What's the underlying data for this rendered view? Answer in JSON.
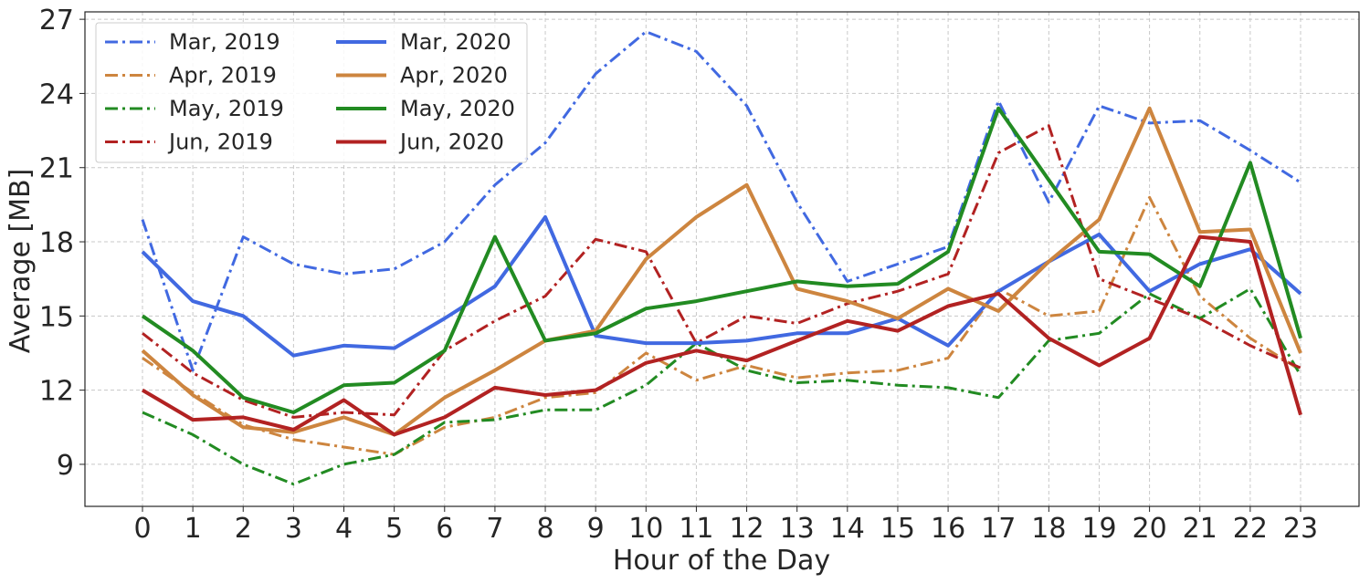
{
  "chart_data": {
    "type": "line",
    "title": "",
    "xlabel": "Hour of the Day",
    "ylabel": "Average [MB]",
    "x": [
      0,
      1,
      2,
      3,
      4,
      5,
      6,
      7,
      8,
      9,
      10,
      11,
      12,
      13,
      14,
      15,
      16,
      17,
      18,
      19,
      20,
      21,
      22,
      23
    ],
    "xticks": [
      "0",
      "1",
      "2",
      "3",
      "4",
      "5",
      "6",
      "7",
      "8",
      "9",
      "10",
      "11",
      "12",
      "13",
      "14",
      "15",
      "16",
      "17",
      "18",
      "19",
      "20",
      "21",
      "22",
      "23"
    ],
    "yticks": [
      "9",
      "12",
      "15",
      "18",
      "21",
      "24",
      "27"
    ],
    "yrange": [
      7.3,
      27.3
    ],
    "grid": true,
    "legend_position": "top-left",
    "series": [
      {
        "name": "Mar, 2019",
        "color": "#4169E1",
        "style": "dashdot",
        "values": [
          18.9,
          12.8,
          18.2,
          17.1,
          16.7,
          16.9,
          18.0,
          20.3,
          22.0,
          24.8,
          26.5,
          25.7,
          23.5,
          19.6,
          16.4,
          17.1,
          17.8,
          23.7,
          19.6,
          23.5,
          22.8,
          22.9,
          21.7,
          20.4
        ]
      },
      {
        "name": "Apr, 2019",
        "color": "#CD853F",
        "style": "dashdot",
        "values": [
          13.3,
          11.9,
          10.6,
          10.0,
          9.7,
          9.4,
          10.5,
          10.9,
          11.7,
          11.9,
          13.5,
          12.4,
          13.0,
          12.5,
          12.7,
          12.8,
          13.3,
          16.1,
          15.0,
          15.2,
          19.8,
          15.8,
          14.1,
          12.8
        ]
      },
      {
        "name": "May, 2019",
        "color": "#228B22",
        "style": "dashdot",
        "values": [
          11.1,
          10.2,
          9.0,
          8.2,
          9.0,
          9.4,
          10.7,
          10.8,
          11.2,
          11.2,
          12.2,
          13.9,
          12.8,
          12.3,
          12.4,
          12.2,
          12.1,
          11.7,
          14.0,
          14.3,
          15.9,
          14.9,
          16.1,
          12.6
        ]
      },
      {
        "name": "Jun, 2019",
        "color": "#B22222",
        "style": "dashdot",
        "values": [
          14.3,
          12.7,
          11.6,
          10.9,
          11.1,
          11.0,
          13.6,
          14.8,
          15.8,
          18.1,
          17.6,
          13.9,
          15.0,
          14.7,
          15.5,
          16.0,
          16.7,
          21.6,
          22.7,
          16.5,
          15.7,
          14.9,
          13.8,
          12.9
        ]
      },
      {
        "name": "Mar, 2020",
        "color": "#4169E1",
        "style": "solid",
        "values": [
          17.6,
          15.6,
          15.0,
          13.4,
          13.8,
          13.7,
          14.9,
          16.2,
          19.0,
          14.2,
          13.9,
          13.9,
          14.0,
          14.3,
          14.3,
          14.9,
          13.8,
          16.0,
          17.2,
          18.3,
          16.0,
          17.1,
          17.7,
          15.9
        ]
      },
      {
        "name": "Apr, 2020",
        "color": "#CD853F",
        "style": "solid",
        "values": [
          13.6,
          11.8,
          10.5,
          10.3,
          10.9,
          10.2,
          11.7,
          12.8,
          14.0,
          14.4,
          17.3,
          19.0,
          20.3,
          16.1,
          15.6,
          14.9,
          16.1,
          15.2,
          17.2,
          18.9,
          23.4,
          18.4,
          18.5,
          13.5
        ]
      },
      {
        "name": "May, 2020",
        "color": "#228B22",
        "style": "solid",
        "values": [
          15.0,
          13.6,
          11.7,
          11.1,
          12.2,
          12.3,
          13.6,
          18.2,
          14.0,
          14.3,
          15.3,
          15.6,
          16.0,
          16.4,
          16.2,
          16.3,
          17.6,
          23.4,
          20.5,
          17.6,
          17.5,
          16.2,
          21.2,
          14.1
        ]
      },
      {
        "name": "Jun, 2020",
        "color": "#B22222",
        "style": "solid",
        "values": [
          12.0,
          10.8,
          10.9,
          10.4,
          11.6,
          10.2,
          10.9,
          12.1,
          11.8,
          12.0,
          13.1,
          13.6,
          13.2,
          14.0,
          14.8,
          14.4,
          15.4,
          15.9,
          14.1,
          13.0,
          14.1,
          18.2,
          18.0,
          11.0
        ]
      }
    ]
  }
}
